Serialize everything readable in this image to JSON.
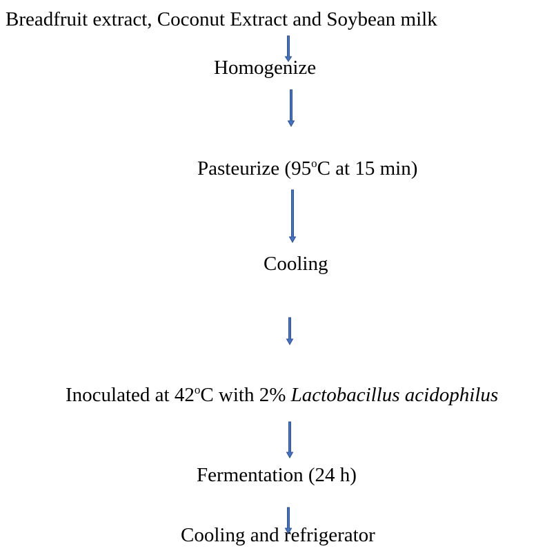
{
  "nodes": [
    {
      "segments": [
        {
          "text": "Breadfruit extract, Coconut Extract and Soybean milk"
        }
      ]
    },
    {
      "segments": [
        {
          "text": "Homogenize"
        }
      ]
    },
    {
      "segments": [
        {
          "text": "Pasteurize (95"
        },
        {
          "text": "o",
          "style": "sup"
        },
        {
          "text": "C at 15 min)"
        }
      ]
    },
    {
      "segments": [
        {
          "text": "Cooling"
        }
      ]
    },
    {
      "segments": [
        {
          "text": "Inoculated at 42"
        },
        {
          "text": "o",
          "style": "sup"
        },
        {
          "text": "C with 2% "
        },
        {
          "text": "Lactobacillus acidophilus",
          "style": "italic"
        }
      ]
    },
    {
      "segments": [
        {
          "text": "Fermentation (24 h)"
        }
      ]
    },
    {
      "segments": [
        {
          "text": "Cooling and refrigerator"
        }
      ]
    }
  ]
}
